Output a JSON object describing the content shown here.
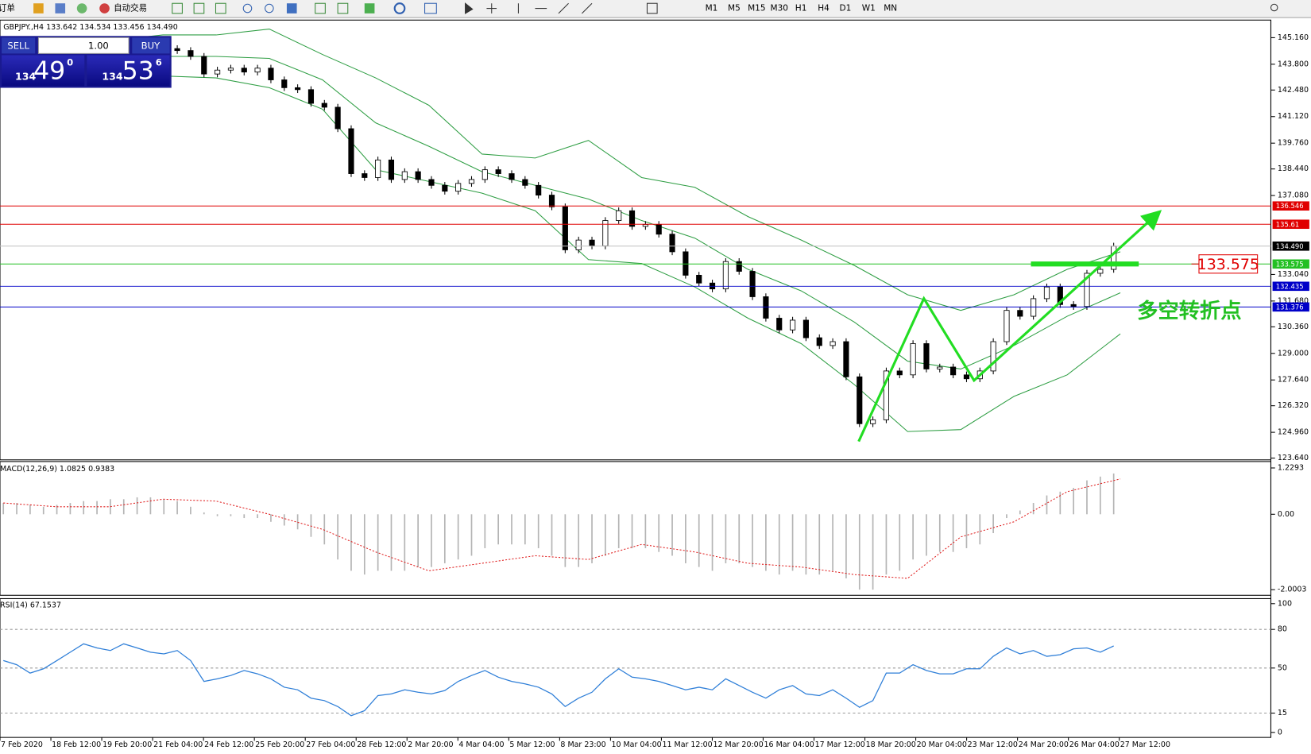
{
  "toolbar": {
    "new_order": "新订单",
    "auto_trading": "自动交易",
    "timeframes": [
      "M1",
      "M5",
      "M15",
      "M30",
      "H1",
      "H4",
      "D1",
      "W1",
      "MN"
    ]
  },
  "trade_panel": {
    "sell": "SELL",
    "buy": "BUY",
    "lot": "1.00",
    "bid_big": "134",
    "bid_pips": "49",
    "bid_frac": "0",
    "ask_big": "134",
    "ask_pips": "53",
    "ask_frac": "6"
  },
  "annotation": {
    "note": "多空转折点"
  },
  "chart_data": [
    {
      "type": "candlestick",
      "title": "GBPJPY.,H4 133.642 134.534 133.456 134.490",
      "ylim": [
        123.55,
        146.06
      ],
      "yticks": [
        {
          "value": 145.16,
          "label": "145.160"
        },
        {
          "value": 143.8,
          "label": "143.800"
        },
        {
          "value": 142.48,
          "label": "142.480"
        },
        {
          "value": 141.12,
          "label": "141.120"
        },
        {
          "value": 139.76,
          "label": "139.760"
        },
        {
          "value": 138.44,
          "label": "138.440"
        },
        {
          "value": 137.08,
          "label": "137.080"
        },
        {
          "value": 133.04,
          "label": "133.040"
        },
        {
          "value": 131.68,
          "label": "131.680"
        },
        {
          "value": 130.36,
          "label": "130.360"
        },
        {
          "value": 129,
          "label": "129.000"
        },
        {
          "value": 127.64,
          "label": "127.640"
        },
        {
          "value": 126.32,
          "label": "126.320"
        },
        {
          "value": 124.96,
          "label": "124.960"
        },
        {
          "value": 123.64,
          "label": "123.640"
        }
      ],
      "levels": [
        136.546,
        135.61,
        {
          "value": 134.49,
          "label": "134.490"
        },
        133.575,
        132.435,
        131.376
      ],
      "level_colors": [
        "#e00000",
        "#e00000",
        "#000000",
        "#22c022",
        "#0000c8",
        "#0000c8"
      ],
      "marker": 133.575,
      "close": [
        144.6,
        144.5,
        144.4,
        144.6,
        144.5,
        144.3,
        144.6,
        144.4,
        144.7,
        144.5,
        144.6,
        144.4,
        144.6,
        144.5,
        144.2,
        143.3,
        143.5,
        143.6,
        143.4,
        143.6,
        143.0,
        142.6,
        142.5,
        141.8,
        141.6,
        140.5,
        138.2,
        138.0,
        138.9,
        137.9,
        138.3,
        137.9,
        137.6,
        137.3,
        137.7,
        137.9,
        138.4,
        138.2,
        137.9,
        137.6,
        137.1,
        136.5,
        134.3,
        134.8,
        134.5,
        135.8,
        136.3,
        135.5,
        135.6,
        135.1,
        134.2,
        133.0,
        132.6,
        132.3,
        133.7,
        133.2,
        131.9,
        130.8,
        130.2,
        130.7,
        129.8,
        129.4,
        129.6,
        127.8,
        125.4,
        125.6,
        128.1,
        127.9,
        129.5,
        128.2,
        128.3,
        127.9,
        127.7,
        128.1,
        129.6,
        131.2,
        130.9,
        131.8,
        132.4,
        131.5,
        131.4,
        133.1,
        133.3,
        134.49
      ],
      "bb_upper": [
        145.2,
        145.1,
        145.0,
        145.3,
        145.3,
        145.6,
        144.3,
        143.1,
        141.7,
        139.2,
        139.0,
        139.9,
        138.0,
        137.5,
        136.0,
        134.8,
        133.5,
        132.0,
        131.2,
        132.0,
        133.3,
        134.2
      ],
      "bb_middle": [
        144.2,
        144.1,
        144.0,
        144.2,
        144.2,
        144.1,
        143.0,
        140.8,
        139.6,
        138.3,
        137.6,
        136.9,
        135.8,
        134.9,
        133.3,
        132.2,
        130.6,
        128.6,
        128.2,
        129.4,
        130.9,
        132.1
      ],
      "bb_lower": [
        142.9,
        143.0,
        143.2,
        143.2,
        143.1,
        142.6,
        141.5,
        138.4,
        137.8,
        137.2,
        136.3,
        133.8,
        133.6,
        132.4,
        130.8,
        129.5,
        127.4,
        125.0,
        125.1,
        126.8,
        127.9,
        130.0
      ],
      "band_color": "#2f9e44"
    },
    {
      "type": "macd",
      "title": "MACD(12,26,9) 1.0825 0.9383",
      "ylim": [
        -2.15,
        1.4
      ],
      "yticks": [
        1.2293,
        {
          "value": 0,
          "label": "0.00"
        },
        -2.0003
      ],
      "values": [
        0.3,
        0.3,
        0.25,
        0.2,
        0.25,
        0.3,
        0.35,
        0.35,
        0.4,
        0.4,
        0.45,
        0.45,
        0.4,
        0.35,
        0.2,
        0.05,
        -0.05,
        -0.05,
        -0.1,
        -0.1,
        -0.2,
        -0.3,
        -0.4,
        -0.6,
        -0.8,
        -1.2,
        -1.5,
        -1.6,
        -1.5,
        -1.5,
        -1.5,
        -1.4,
        -1.4,
        -1.3,
        -1.2,
        -1.1,
        -0.9,
        -0.8,
        -0.8,
        -0.8,
        -0.9,
        -1.1,
        -1.4,
        -1.4,
        -1.3,
        -1.1,
        -0.9,
        -0.9,
        -0.9,
        -1.0,
        -1.1,
        -1.3,
        -1.4,
        -1.5,
        -1.3,
        -1.3,
        -1.4,
        -1.5,
        -1.6,
        -1.5,
        -1.6,
        -1.6,
        -1.5,
        -1.7,
        -2.0,
        -2.0,
        -1.6,
        -1.5,
        -1.2,
        -1.1,
        -1.0,
        -1.0,
        -0.9,
        -0.8,
        -0.5,
        -0.1,
        0.1,
        0.3,
        0.5,
        0.6,
        0.7,
        0.9,
        1.0,
        1.0825
      ],
      "signal": [
        0.3,
        0.2,
        0.2,
        0.4,
        0.35,
        0.0,
        -0.4,
        -1.0,
        -1.5,
        -1.3,
        -1.1,
        -1.2,
        -0.8,
        -1.0,
        -1.3,
        -1.4,
        -1.6,
        -1.7,
        -0.6,
        -0.2,
        0.6,
        0.9383
      ],
      "color": "#b4b4b4",
      "signal_color": "#e02020"
    },
    {
      "type": "line",
      "title": "RSI(14) 67.1537",
      "ylim": [
        -3.9,
        103.9
      ],
      "yticks": [
        100,
        80,
        50,
        15,
        0
      ],
      "levels": [
        80,
        50,
        15
      ],
      "values": [
        55.8,
        52.6,
        46.1,
        49.4,
        55.8,
        62.3,
        68.8,
        65.6,
        63.6,
        68.8,
        65.6,
        62.3,
        61.0,
        63.6,
        55.8,
        39.6,
        41.6,
        44.2,
        48.1,
        45.5,
        41.6,
        35.1,
        33.1,
        26.6,
        24.7,
        20.1,
        13.0,
        16.9,
        28.6,
        29.9,
        33.1,
        31.2,
        29.9,
        32.5,
        39.6,
        44.2,
        48.1,
        42.9,
        39.6,
        37.7,
        35.1,
        29.9,
        20.1,
        26.6,
        31.2,
        41.6,
        49.4,
        42.9,
        41.6,
        39.6,
        36.4,
        33.1,
        35.1,
        33.1,
        41.6,
        36.4,
        31.2,
        26.6,
        33.1,
        36.4,
        29.9,
        28.6,
        33.1,
        26.6,
        19.5,
        24.7,
        46.1,
        46.1,
        52.6,
        48.1,
        45.5,
        45.5,
        49.4,
        49.4,
        59.1,
        65.6,
        61.0,
        63.6,
        59.1,
        60.4,
        64.9,
        65.6,
        62.3,
        67.1537
      ],
      "color": "#2f7fd8",
      "x_labels": [
        "7 Feb 2020",
        "18 Feb 12:00",
        "19 Feb 20:00",
        "21 Feb 04:00",
        "24 Feb 12:00",
        "25 Feb 20:00",
        "27 Feb 04:00",
        "28 Feb 12:00",
        "2 Mar 20:00",
        "4 Mar 04:00",
        "5 Mar 12:00",
        "8 Mar 23:00",
        "10 Mar 04:00",
        "11 Mar 12:00",
        "12 Mar 20:00",
        "16 Mar 04:00",
        "17 Mar 12:00",
        "18 Mar 20:00",
        "20 Mar 04:00",
        "23 Mar 12:00",
        "24 Mar 20:00",
        "26 Mar 04:00",
        "27 Mar 12:00"
      ]
    }
  ]
}
